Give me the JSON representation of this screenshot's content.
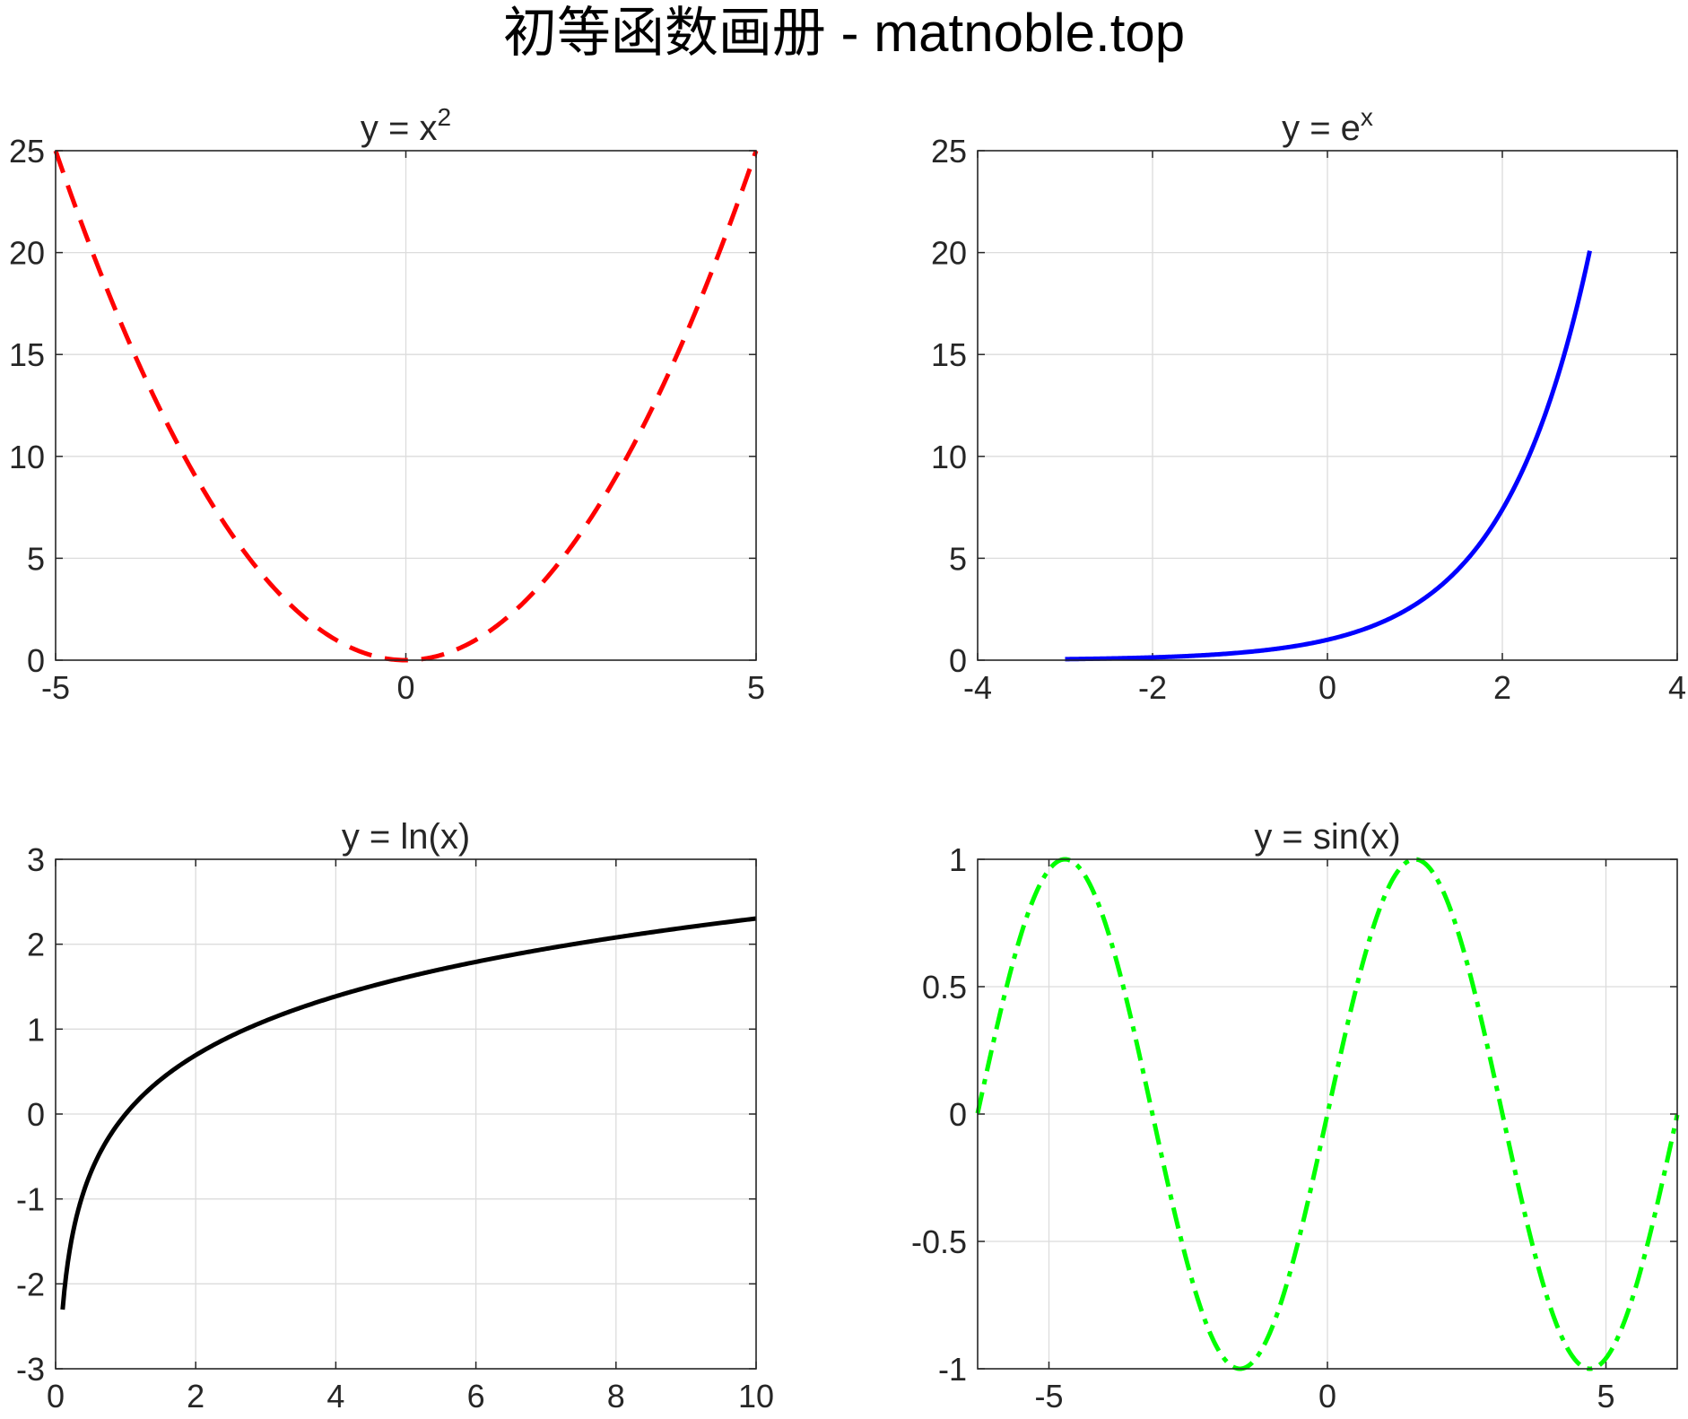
{
  "figure": {
    "title": "初等函数画册 - matnoble.top"
  },
  "chart_data": [
    {
      "type": "line",
      "title": "y = x",
      "title_superscript": "2",
      "xlim": [
        -5,
        5
      ],
      "ylim": [
        0,
        25
      ],
      "xticks": [
        -5,
        0,
        5
      ],
      "yticks": [
        0,
        5,
        10,
        15,
        20,
        25
      ],
      "grid": true,
      "function": "x^2",
      "domain": [
        -5,
        5
      ],
      "line_style": "dashed",
      "color": "#ff0000",
      "series": [
        {
          "x": [
            -5,
            -4,
            -3,
            -2,
            -1,
            0,
            1,
            2,
            3,
            4,
            5
          ],
          "y": [
            25,
            16,
            9,
            4,
            1,
            0,
            1,
            4,
            9,
            16,
            25
          ]
        }
      ]
    },
    {
      "type": "line",
      "title": "y = e",
      "title_superscript": "x",
      "xlim": [
        -4,
        4
      ],
      "ylim": [
        0,
        25
      ],
      "xticks": [
        -4,
        -2,
        0,
        2,
        4
      ],
      "yticks": [
        0,
        5,
        10,
        15,
        20,
        25
      ],
      "grid": true,
      "function": "exp(x)",
      "domain": [
        -3,
        3
      ],
      "line_style": "solid",
      "color": "#0000ff",
      "series": [
        {
          "x": [
            -3,
            -2,
            -1,
            0,
            1,
            2,
            3
          ],
          "y": [
            0.05,
            0.14,
            0.37,
            1,
            2.72,
            7.39,
            20.09
          ]
        }
      ]
    },
    {
      "type": "line",
      "title": "y = ln(x)",
      "title_superscript": "",
      "xlim": [
        0,
        10
      ],
      "ylim": [
        -3,
        3
      ],
      "xticks": [
        0,
        2,
        4,
        6,
        8,
        10
      ],
      "yticks": [
        -3,
        -2,
        -1,
        0,
        1,
        2,
        3
      ],
      "grid": true,
      "function": "ln(x)",
      "domain": [
        0.1,
        10
      ],
      "line_style": "solid",
      "color": "#000000",
      "series": [
        {
          "x": [
            0.1,
            0.5,
            1,
            2,
            4,
            6,
            8,
            10
          ],
          "y": [
            -2.3,
            -0.69,
            0,
            0.69,
            1.39,
            1.79,
            2.08,
            2.3
          ]
        }
      ]
    },
    {
      "type": "line",
      "title": "y = sin(x)",
      "title_superscript": "",
      "xlim": [
        -6.28,
        6.28
      ],
      "ylim": [
        -1,
        1
      ],
      "xticks": [
        -5,
        0,
        5
      ],
      "yticks": [
        -1,
        -0.5,
        0,
        0.5,
        1
      ],
      "grid": true,
      "function": "sin(x)",
      "domain": [
        -6.28,
        6.28
      ],
      "line_style": "dash-dot",
      "color": "#00ff00",
      "series": [
        {
          "x": [
            -6.28,
            -4.71,
            -3.14,
            -1.57,
            0,
            1.57,
            3.14,
            4.71,
            6.28
          ],
          "y": [
            0,
            1,
            0,
            -1,
            0,
            1,
            0,
            -1,
            0
          ]
        }
      ]
    }
  ]
}
